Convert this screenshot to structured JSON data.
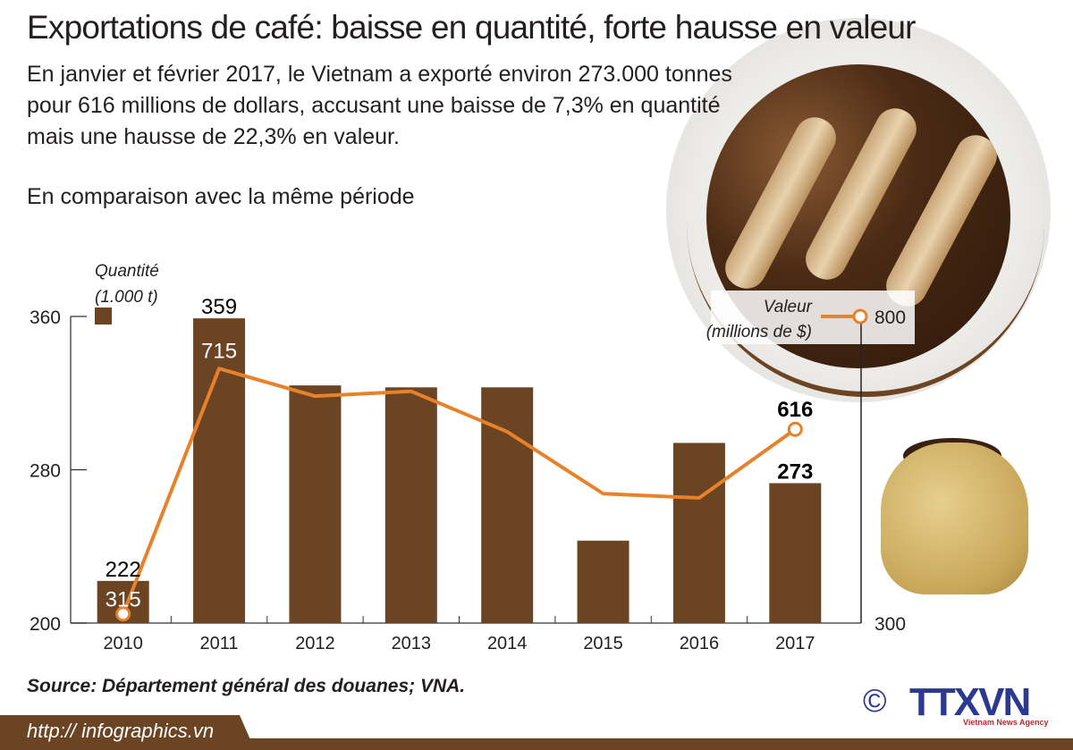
{
  "header": {
    "title": "Exportations de café: baisse en quantité, forte hausse en valeur",
    "intro": "En janvier et février 2017, le Vietnam a exporté environ 273.000 tonnes pour 616 millions de dollars, accusant une baisse de 7,3% en quantité mais une hausse de 22,3% en valeur.",
    "comparison": "En comparaison avec la même période"
  },
  "chart_data": {
    "type": "bar+line",
    "categories": [
      "2010",
      "2011",
      "2012",
      "2013",
      "2014",
      "2015",
      "2016",
      "2017"
    ],
    "series": [
      {
        "name": "Quantité (1.000 t)",
        "kind": "bar",
        "axis": "left",
        "values": [
          222,
          359,
          324,
          323,
          323,
          243,
          294,
          273
        ],
        "labels": [
          "222",
          "359",
          null,
          null,
          null,
          null,
          null,
          "273"
        ],
        "color": "#6b4423"
      },
      {
        "name": "Valeur (millions de $)",
        "kind": "line",
        "axis": "right",
        "values": [
          315,
          715,
          670,
          678,
          612,
          511,
          504,
          616
        ],
        "labels": [
          "315",
          "715",
          null,
          null,
          null,
          null,
          null,
          "616"
        ],
        "color": "#e8822a"
      }
    ],
    "left_axis": {
      "label_line1": "Quantité",
      "label_line2": "(1.000 t)",
      "range": [
        200,
        360
      ],
      "ticks": [
        "200",
        "280",
        "360"
      ]
    },
    "right_axis": {
      "label_line1": "Valeur",
      "label_line2": "(millions de $)",
      "range": [
        300,
        800
      ],
      "ticks": [
        "300",
        "800"
      ]
    },
    "grid": false
  },
  "footer": {
    "source": "Source: Département général des douanes; VNA.",
    "url": "http:// infographics.vn",
    "logo": {
      "copyright": "©",
      "name": "TTXVN",
      "subtitle": "Vietnam News Agency"
    }
  },
  "colors": {
    "brown": "#6b4423",
    "orange": "#e8822a",
    "logo_blue": "#2b3990"
  }
}
